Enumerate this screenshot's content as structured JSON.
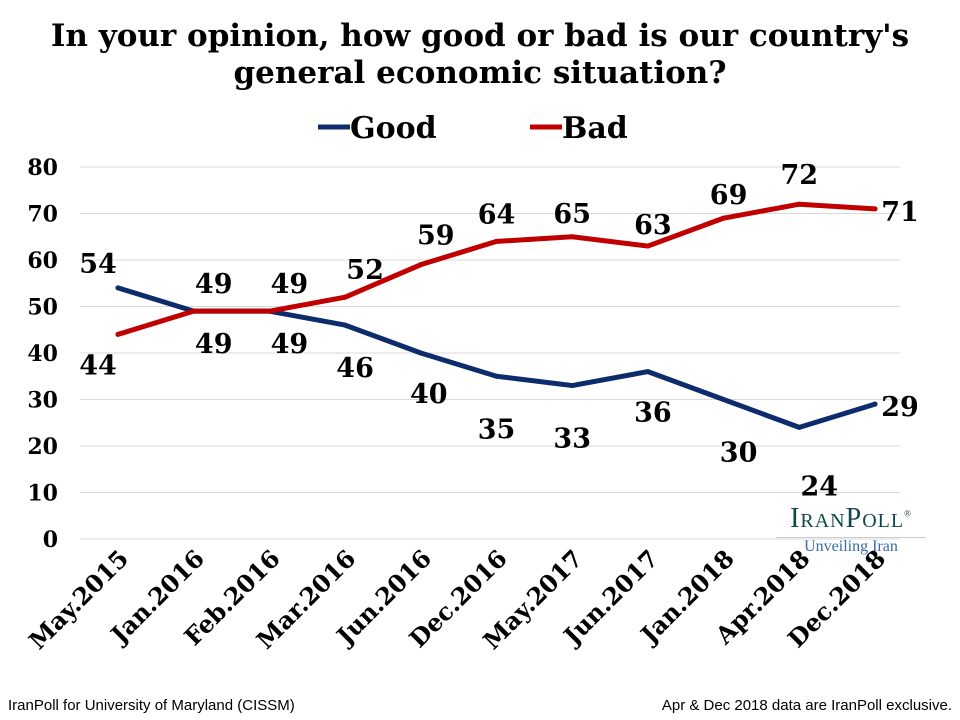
{
  "chart_data": {
    "type": "line",
    "title": "In your opinion, how good or bad is our country's general economic situation?",
    "categories": [
      "May.2015",
      "Jan.2016",
      "Feb.2016",
      "Mar.2016",
      "Jun.2016",
      "Dec.2016",
      "May.2017",
      "Jun.2017",
      "Jan.2018",
      "Apr.2018",
      "Dec.2018"
    ],
    "series": [
      {
        "name": "Good",
        "color": "#0d2c6b",
        "values": [
          54,
          49,
          49,
          46,
          40,
          35,
          33,
          36,
          30,
          24,
          29
        ]
      },
      {
        "name": "Bad",
        "color": "#c00000",
        "values": [
          44,
          49,
          49,
          52,
          59,
          64,
          65,
          63,
          69,
          72,
          71
        ]
      }
    ],
    "ylim": [
      0,
      80
    ],
    "yticks": [
      0,
      10,
      20,
      30,
      40,
      50,
      60,
      70,
      80
    ],
    "grid": true,
    "legend": "top-center",
    "data_labels": true
  },
  "logo": {
    "name": "IranPoll",
    "tagline": "Unveiling Iran"
  },
  "footer": {
    "left": "IranPoll for University of Maryland (CISSM)",
    "right": "Apr & Dec 2018 data are IranPoll exclusive."
  }
}
